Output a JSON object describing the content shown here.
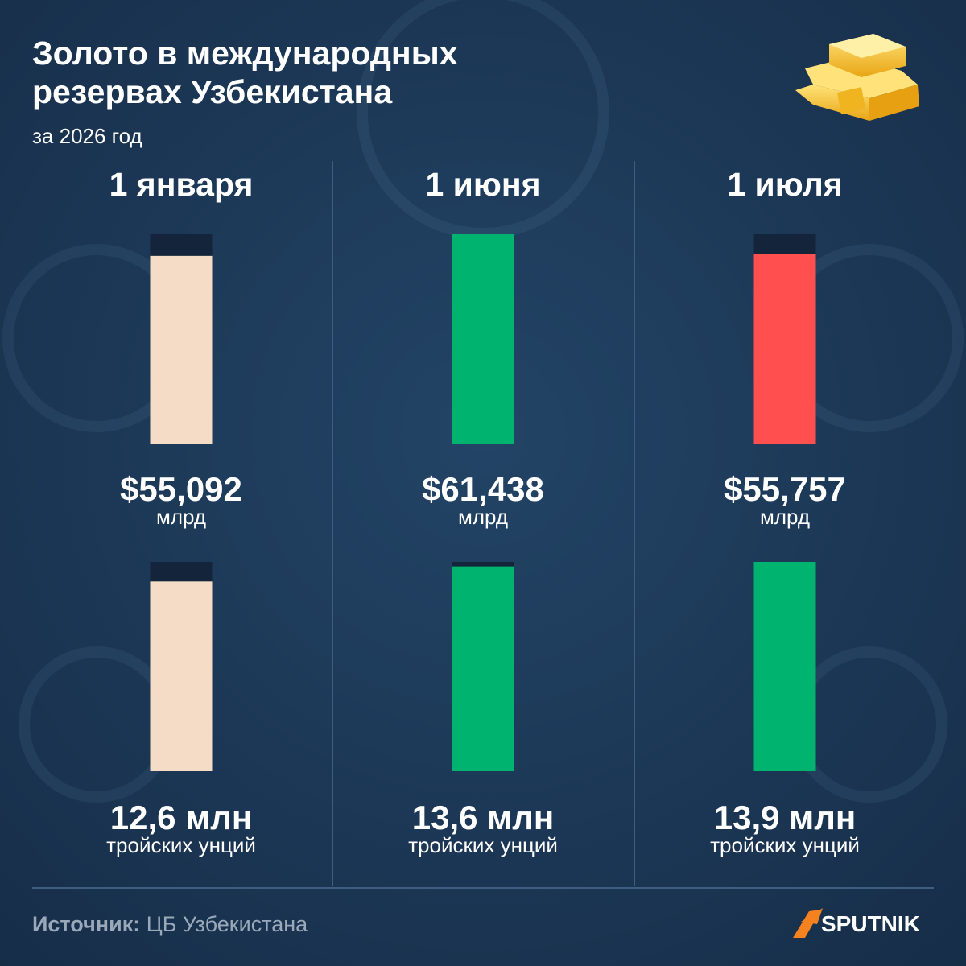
{
  "title_lines": [
    "Золото в международных",
    "резервах Узбекистана"
  ],
  "subtitle": "за 2026 год",
  "source_label": "Источник:",
  "source": "ЦБ Узбекистана",
  "logo": "SPUTNIK",
  "chart_data": [
    {
      "type": "bar",
      "categories": [
        "1 января",
        "1 июня",
        "1 июля"
      ],
      "values": [
        55.092,
        61.438,
        55.757
      ],
      "value_labels": [
        "$55,092",
        "$61,438",
        "$55,757"
      ],
      "unit": "млрд",
      "colors": [
        "#f5dcc6",
        "#00b36e",
        "#ff4f4f"
      ],
      "ylim": [
        0,
        61.438
      ]
    },
    {
      "type": "bar",
      "values": [
        12.6,
        13.6,
        13.9
      ],
      "value_labels": [
        "12,6 млн",
        "13,6 млн",
        "13,9 млн"
      ],
      "unit": "тройских унций",
      "colors": [
        "#f5dcc6",
        "#00b36e",
        "#00b36e"
      ],
      "ylim": [
        0,
        13.9
      ]
    }
  ]
}
